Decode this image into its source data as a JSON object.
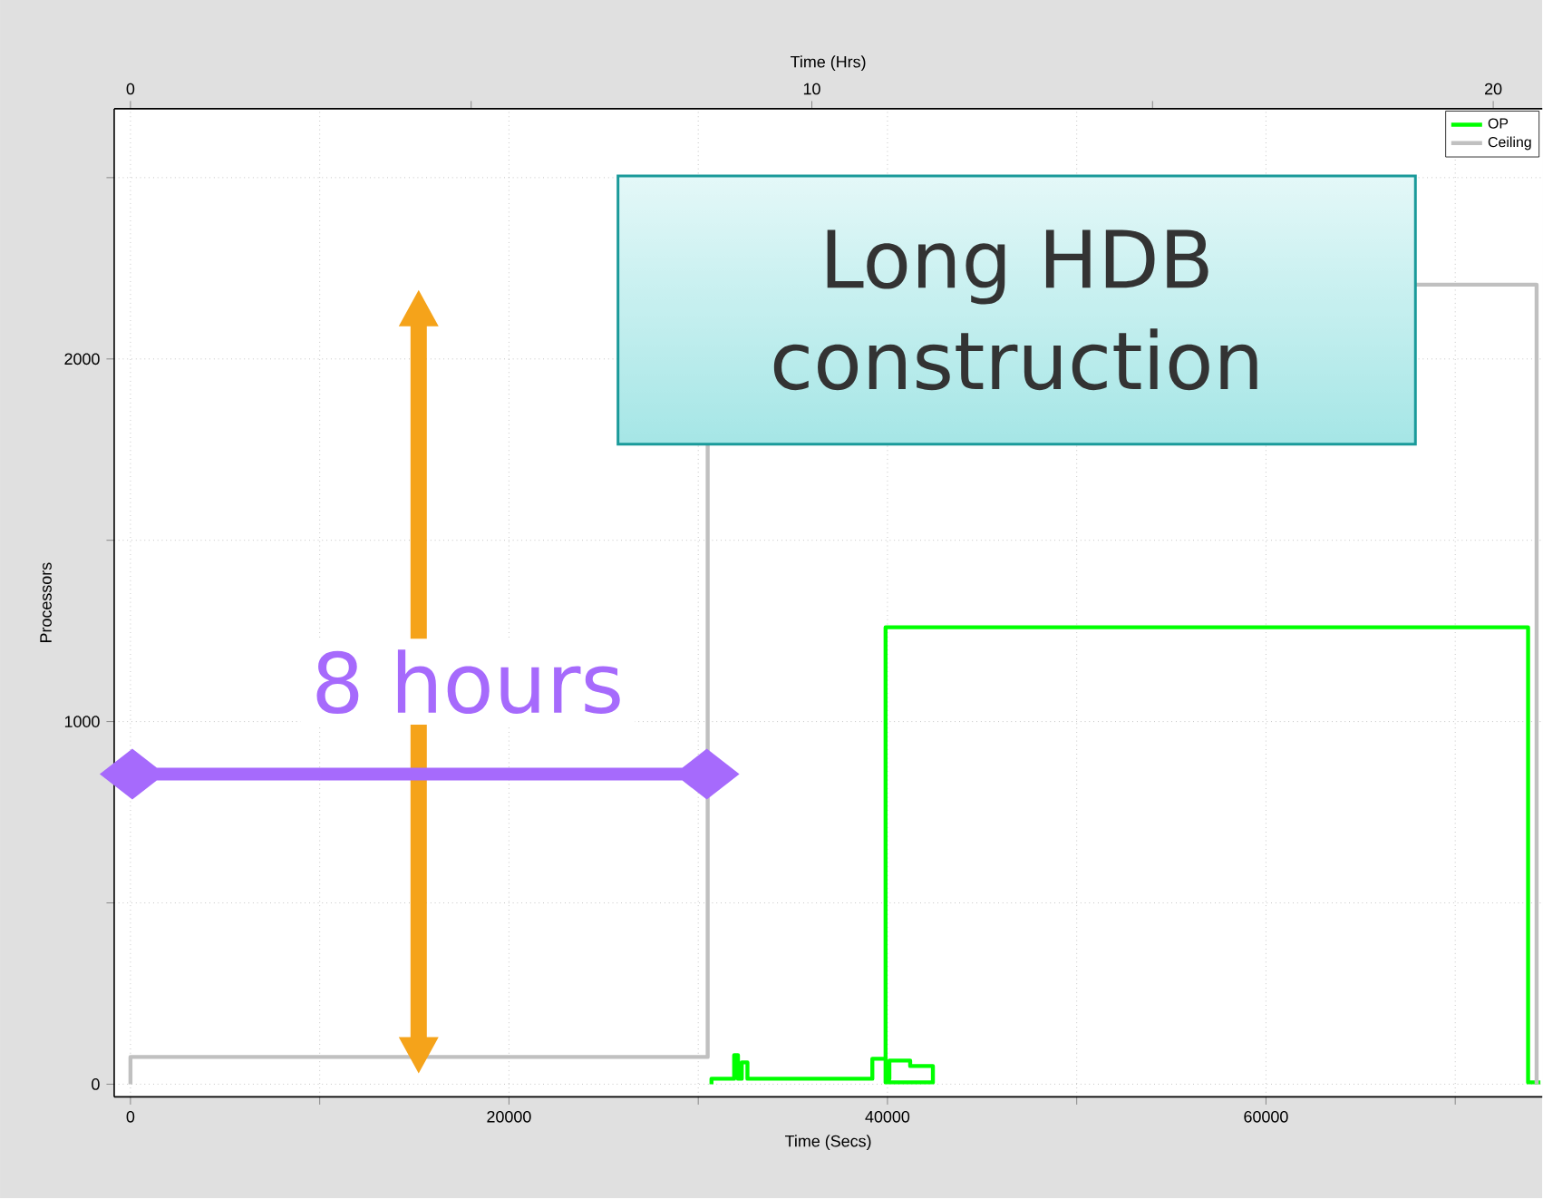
{
  "chart_data": {
    "type": "line",
    "xlabel": "Time (Secs)",
    "ylabel": "Processors",
    "x2label": "Time (Hrs)",
    "xlim": [
      -860,
      74600
    ],
    "ylim": [
      -35,
      2690
    ],
    "x2lim": [
      -0.239,
      20.72
    ],
    "xticks": [
      0,
      {
        "value": 10000,
        "label": null
      },
      20000,
      {
        "value": 30000,
        "label": null
      },
      40000,
      {
        "value": 50000,
        "label": null
      },
      60000,
      {
        "value": 70000,
        "label": null
      }
    ],
    "yticks": [
      0,
      {
        "value": 500,
        "label": null
      },
      1000,
      {
        "value": 1500,
        "label": null
      },
      2000,
      {
        "value": 2500,
        "label": null
      }
    ],
    "x2ticks": [
      0,
      {
        "value": 5,
        "label": null
      },
      10,
      {
        "value": 15,
        "label": null
      },
      20
    ],
    "grid": true,
    "legend": "top right",
    "marker": "none",
    "line_style": "solid",
    "series": [
      {
        "name": "OP",
        "color": "#00ff00",
        "x": [
          30700,
          30700,
          31900,
          31900,
          32100,
          32100,
          32300,
          32300,
          32600,
          32600,
          39200,
          39200,
          39900,
          39900,
          40100,
          40100,
          41200,
          41200,
          42400,
          42400,
          39900,
          39900,
          73850,
          73850,
          74500
        ],
        "values": [
          0,
          15,
          15,
          80,
          80,
          15,
          15,
          60,
          60,
          15,
          15,
          70,
          70,
          15,
          15,
          65,
          65,
          50,
          50,
          5,
          5,
          1260,
          1260,
          5,
          5
        ]
      },
      {
        "name": "Ceiling",
        "color": "#c0c0c0",
        "x": [
          0,
          0,
          30500,
          30500,
          50000,
          67900,
          74300,
          74300
        ],
        "values": [
          0,
          75,
          75,
          1765,
          null,
          2205,
          2205,
          0
        ]
      }
    ],
    "annotations": [
      "Long HDB construction",
      "8 hours"
    ]
  }
}
